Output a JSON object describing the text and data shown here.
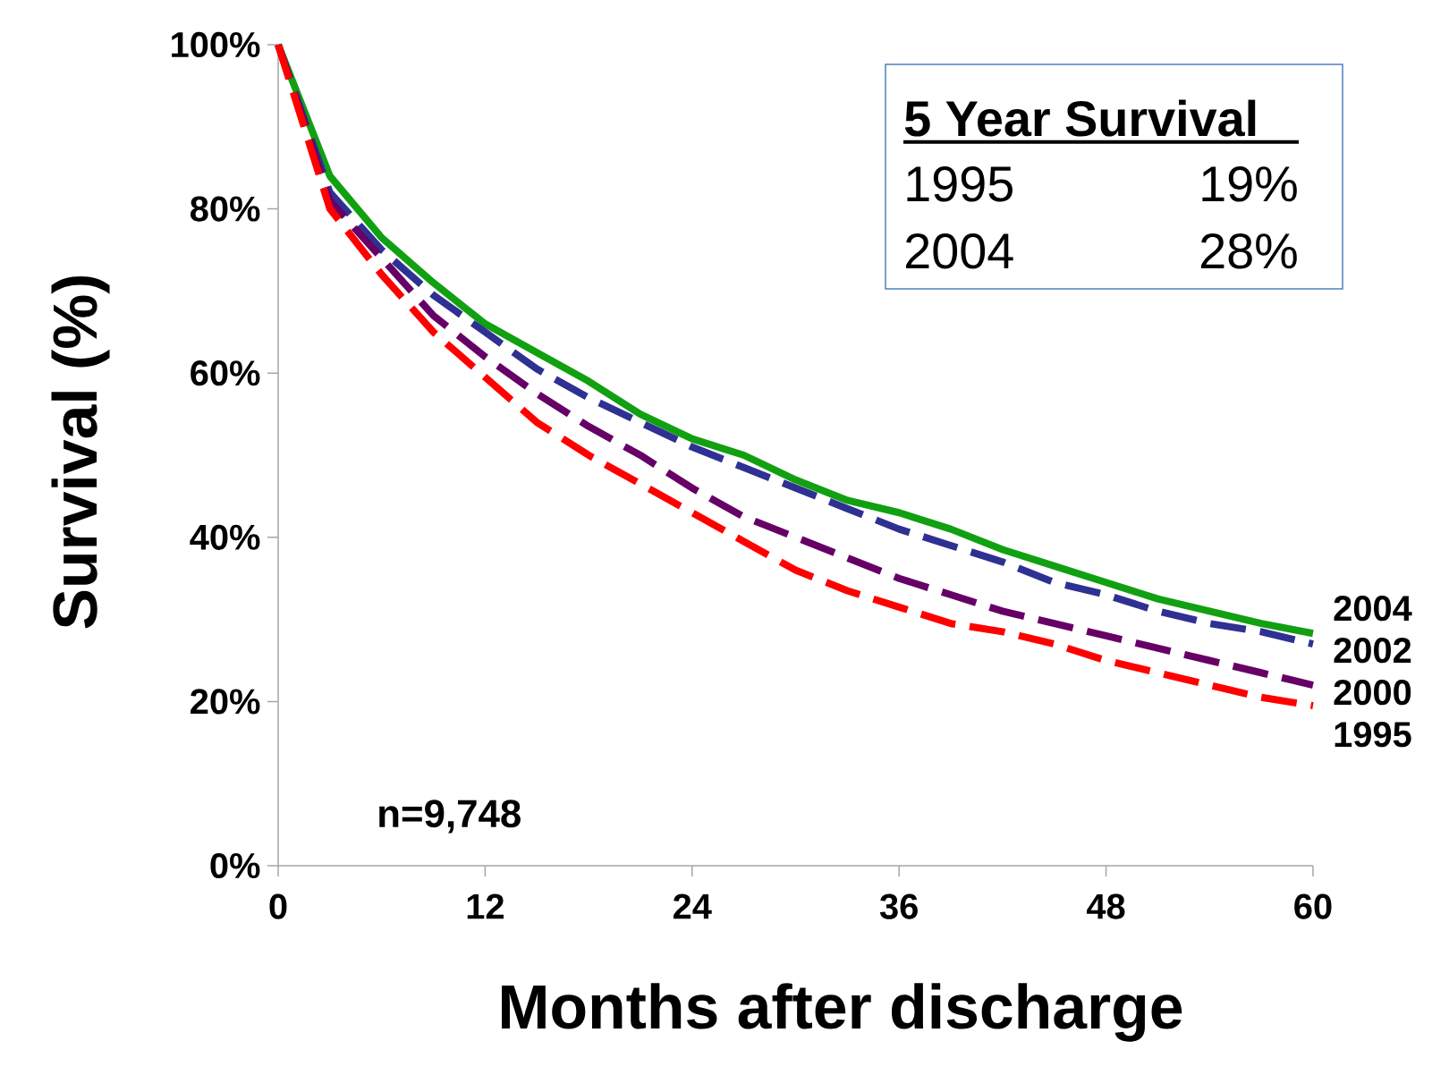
{
  "chart_data": {
    "type": "line",
    "xlabel": "Months after discharge",
    "ylabel": "Survival (%)",
    "x": [
      0,
      3,
      6,
      9,
      12,
      15,
      18,
      21,
      24,
      27,
      30,
      33,
      36,
      39,
      42,
      45,
      48,
      51,
      54,
      57,
      60
    ],
    "series": [
      {
        "name": "2004",
        "color": "#11a011",
        "line_style": "solid",
        "values": [
          100,
          84,
          76.5,
          71,
          66,
          62.5,
          59,
          55,
          52,
          50,
          47,
          44.5,
          43,
          41,
          38.5,
          36.5,
          34.5,
          32.5,
          31,
          29.5,
          28.3
        ]
      },
      {
        "name": "2002",
        "color": "#2e3192",
        "line_style": "dashed",
        "values": [
          100,
          82,
          75,
          69.5,
          65,
          60.5,
          57,
          54,
          51,
          48.5,
          46,
          43.5,
          41,
          39,
          37,
          34.5,
          33,
          31,
          29.5,
          28.5,
          27
        ]
      },
      {
        "name": "2000",
        "color": "#660066",
        "line_style": "dashed",
        "values": [
          100,
          81,
          74,
          67,
          62,
          57.5,
          53.5,
          50,
          46,
          42.5,
          40,
          37.5,
          35,
          33,
          31,
          29.5,
          28,
          26.5,
          25,
          23.5,
          22
        ]
      },
      {
        "name": "1995",
        "color": "#ff0000",
        "line_style": "dashed",
        "values": [
          100,
          80,
          72,
          65,
          59.5,
          54,
          50,
          46.5,
          43,
          39.5,
          36,
          33.5,
          31.5,
          29.5,
          28.5,
          27,
          25,
          23.5,
          22,
          20.5,
          19.5
        ]
      }
    ],
    "xlim": [
      0,
      60
    ],
    "xticks": [
      0,
      12,
      24,
      36,
      48,
      60
    ],
    "ylim": [
      0,
      100
    ],
    "yticks": [
      {
        "value": 0,
        "label": "0%"
      },
      {
        "value": 20,
        "label": "20%"
      },
      {
        "value": 40,
        "label": "40%"
      },
      {
        "value": 60,
        "label": "60%"
      },
      {
        "value": 80,
        "label": "80%"
      },
      {
        "value": 100,
        "label": "100%"
      }
    ],
    "annotations": [
      "5 Year Survival",
      "1995",
      "19%",
      "2004",
      "28%",
      "n=9,748"
    ],
    "grid": false,
    "marker": "none"
  }
}
